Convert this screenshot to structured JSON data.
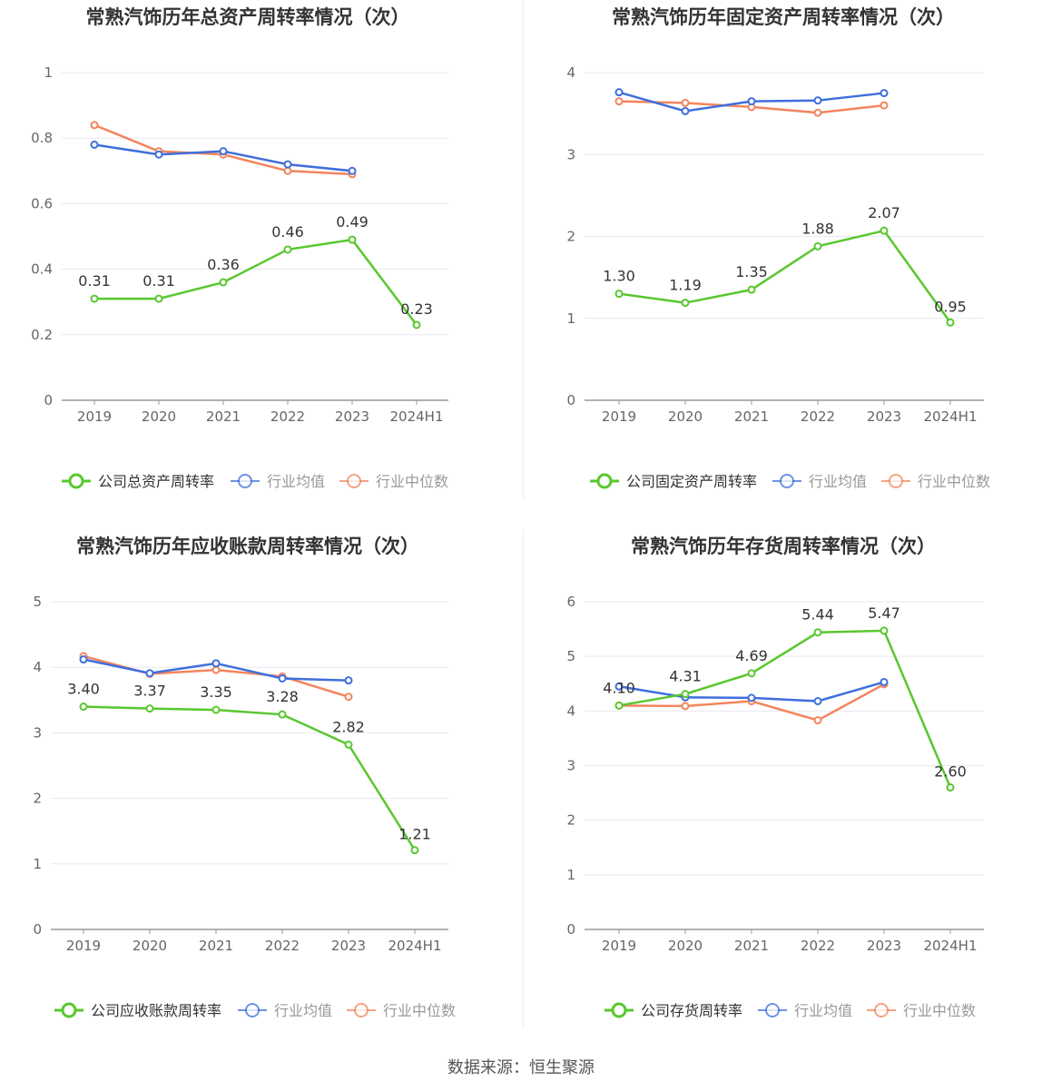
{
  "source": "数据来源：恒生聚源",
  "colors": {
    "company": "#5ac72f",
    "avg": "#3f6fdc",
    "median": "#f2855d",
    "grid": "#e6e9f0",
    "axis": "#999999",
    "text": "#333333",
    "tick": "#666666"
  },
  "chart_data": [
    {
      "type": "line",
      "title": "常熟汽饰历年总资产周转率情况（次）",
      "categories": [
        "2019",
        "2020",
        "2021",
        "2022",
        "2023",
        "2024H1"
      ],
      "ylim": [
        0,
        1
      ],
      "yticks": [
        "0",
        "0.2",
        "0.4",
        "0.6",
        "0.8",
        "1"
      ],
      "grid": true,
      "legend_position": "bottom",
      "series": [
        {
          "name": "公司总资产周转率",
          "role": "company",
          "values": [
            0.31,
            0.31,
            0.36,
            0.46,
            0.49,
            0.23
          ],
          "labels": [
            "0.31",
            "0.31",
            "0.36",
            "0.46",
            "0.49",
            "0.23"
          ]
        },
        {
          "name": "行业均值",
          "role": "avg",
          "values": [
            0.78,
            0.75,
            0.76,
            0.72,
            0.7,
            null
          ]
        },
        {
          "name": "行业中位数",
          "role": "median",
          "values": [
            0.84,
            0.76,
            0.75,
            0.7,
            0.69,
            null
          ]
        }
      ]
    },
    {
      "type": "line",
      "title": "常熟汽饰历年固定资产周转率情况（次）",
      "categories": [
        "2019",
        "2020",
        "2021",
        "2022",
        "2023",
        "2024H1"
      ],
      "ylim": [
        0,
        4
      ],
      "yticks": [
        "0",
        "1",
        "2",
        "3",
        "4"
      ],
      "grid": true,
      "legend_position": "bottom",
      "series": [
        {
          "name": "公司固定资产周转率",
          "role": "company",
          "values": [
            1.3,
            1.19,
            1.35,
            1.88,
            2.07,
            0.95
          ],
          "labels": [
            "1.30",
            "1.19",
            "1.35",
            "1.88",
            "2.07",
            "0.95"
          ]
        },
        {
          "name": "行业均值",
          "role": "avg",
          "values": [
            3.76,
            3.53,
            3.65,
            3.66,
            3.75,
            null
          ]
        },
        {
          "name": "行业中位数",
          "role": "median",
          "values": [
            3.65,
            3.63,
            3.58,
            3.51,
            3.6,
            null
          ]
        }
      ]
    },
    {
      "type": "line",
      "title": "常熟汽饰历年应收账款周转率情况（次）",
      "categories": [
        "2019",
        "2020",
        "2021",
        "2022",
        "2023",
        "2024H1"
      ],
      "ylim": [
        0,
        5
      ],
      "yticks": [
        "0",
        "1",
        "2",
        "3",
        "4",
        "5"
      ],
      "grid": true,
      "legend_position": "bottom",
      "series": [
        {
          "name": "公司应收账款周转率",
          "role": "company",
          "values": [
            3.4,
            3.37,
            3.35,
            3.28,
            2.82,
            1.21
          ],
          "labels": [
            "3.40",
            "3.37",
            "3.35",
            "3.28",
            "2.82",
            "1.21"
          ]
        },
        {
          "name": "行业均值",
          "role": "avg",
          "values": [
            4.12,
            3.91,
            4.06,
            3.83,
            3.8,
            null
          ]
        },
        {
          "name": "行业中位数",
          "role": "median",
          "values": [
            4.17,
            3.9,
            3.96,
            3.86,
            3.55,
            null
          ]
        }
      ]
    },
    {
      "type": "line",
      "title": "常熟汽饰历年存货周转率情况（次）",
      "categories": [
        "2019",
        "2020",
        "2021",
        "2022",
        "2023",
        "2024H1"
      ],
      "ylim": [
        0,
        6
      ],
      "yticks": [
        "0",
        "1",
        "2",
        "3",
        "4",
        "5",
        "6"
      ],
      "grid": true,
      "legend_position": "bottom",
      "series": [
        {
          "name": "公司存货周转率",
          "role": "company",
          "values": [
            4.1,
            4.31,
            4.69,
            5.44,
            5.47,
            2.6
          ],
          "labels": [
            "4.10",
            "4.31",
            "4.69",
            "5.44",
            "5.47",
            "2.60"
          ]
        },
        {
          "name": "行业均值",
          "role": "avg",
          "values": [
            4.45,
            4.25,
            4.24,
            4.18,
            4.53,
            null
          ]
        },
        {
          "name": "行业中位数",
          "role": "median",
          "values": [
            4.1,
            4.09,
            4.18,
            3.83,
            4.49,
            null
          ]
        }
      ]
    }
  ]
}
